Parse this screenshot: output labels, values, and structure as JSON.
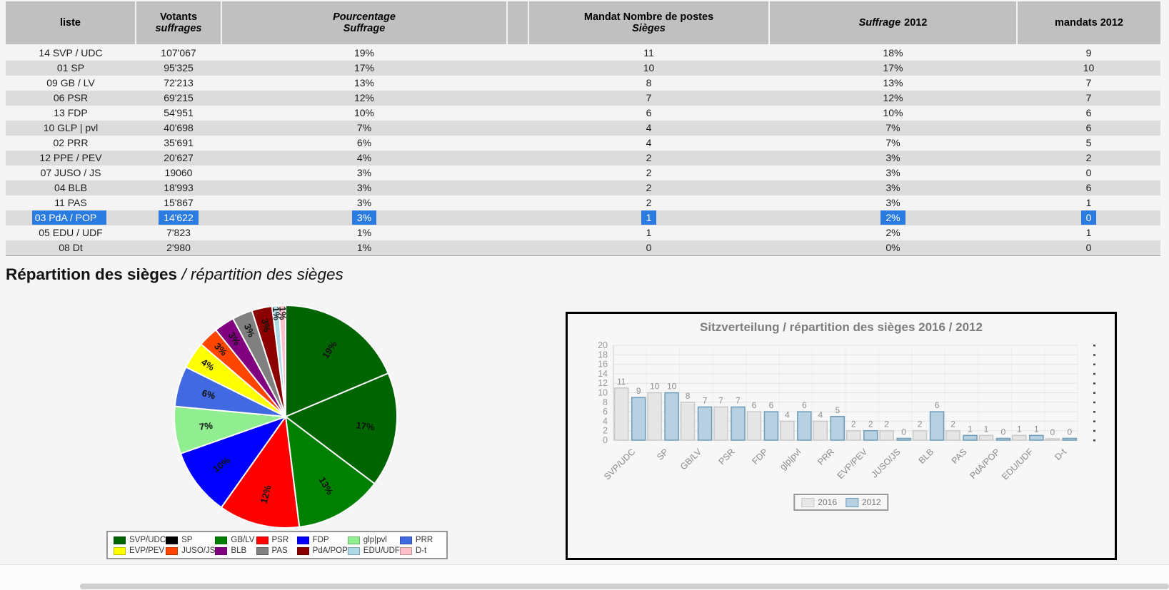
{
  "table": {
    "headers": {
      "liste": "liste",
      "votants": [
        "Votants",
        "suffrages"
      ],
      "pourcentage": [
        "Pourcentage",
        "Suffrage"
      ],
      "mandat": [
        "Mandat Nombre de postes",
        "Sièges"
      ],
      "suffrage_2012": [
        "Suffrage",
        "2012"
      ],
      "mandats_2012": "mandats 2012"
    },
    "rows": [
      [
        "14 SVP / UDC",
        "107'067",
        "19%",
        "11",
        "18%",
        "9"
      ],
      [
        "01 SP",
        "95'325",
        "17%",
        "10",
        "17%",
        "10"
      ],
      [
        "09 GB / LV",
        "72'213",
        "13%",
        "8",
        "13%",
        "7"
      ],
      [
        "06 PSR",
        "69'215",
        "12%",
        "7",
        "12%",
        "7"
      ],
      [
        "13 FDP",
        "54'951",
        "10%",
        "6",
        "10%",
        "6"
      ],
      [
        "10 GLP | pvl",
        "40'698",
        "7%",
        "4",
        "7%",
        "6"
      ],
      [
        "02 PRR",
        "35'691",
        "6%",
        "4",
        "7%",
        "5"
      ],
      [
        "12 PPE / PEV",
        "20'627",
        "4%",
        "2",
        "3%",
        "2"
      ],
      [
        "07 JUSO / JS",
        "19060",
        "3%",
        "2",
        "3%",
        "0"
      ],
      [
        "04 BLB",
        "18'993",
        "3%",
        "2",
        "3%",
        "6"
      ],
      [
        "11 PAS",
        "15'867",
        "3%",
        "2",
        "3%",
        "1"
      ],
      [
        "03 PdA / POP",
        "14'622",
        "3%",
        "1",
        "2%",
        "0"
      ],
      [
        "05 EDU / UDF",
        "7'823",
        "1%",
        "1",
        "2%",
        "1"
      ],
      [
        "08 Dt",
        "2'980",
        "1%",
        "0",
        "0%",
        "0"
      ]
    ],
    "selected_row_index": 11
  },
  "section_title": {
    "main": "Répartition des sièges",
    "italic": "/ répartition des sièges"
  },
  "chart_data": [
    {
      "type": "pie",
      "labels": [
        "SVP/UDC",
        "SP",
        "GB/LV",
        "PSR",
        "FDP",
        "glp|pvl",
        "PRR",
        "EVP/PEV",
        "JUSO/JS",
        "BLB",
        "PAS",
        "PdA/POP",
        "EDU/UDF",
        "D-t"
      ],
      "values": [
        19,
        17,
        13,
        12,
        10,
        7,
        6,
        4,
        3,
        3,
        3,
        3,
        1,
        1
      ],
      "slice_labels": [
        "19%",
        "17%",
        "13%",
        "12%",
        "10%",
        "7%",
        "6%",
        "4%",
        "3%",
        "3%",
        "3%",
        "3%",
        "1%",
        "1%"
      ],
      "slice_colors": [
        "#006400",
        "#006400",
        "#008000",
        "#ff0000",
        "#0000ff",
        "#90ee90",
        "#4169e1",
        "#ffff00",
        "#ff4500",
        "#800080",
        "#808080",
        "#8b0000",
        "#add8e6",
        "#ffc0cb"
      ],
      "legend_colors": [
        "#006400",
        "#000000",
        "#008000",
        "#ff0000",
        "#0000ff",
        "#90ee90",
        "#4169e1",
        "#ffff00",
        "#ff4500",
        "#800080",
        "#808080",
        "#8b0000",
        "#add8e6",
        "#ffc0cb"
      ],
      "legend_labels": [
        "SVP/UDC",
        "SP",
        "GB/LV",
        "PSR",
        "FDP",
        "glp|pvl",
        "PRR",
        "EVP/PEV",
        "JUSO/JS",
        "BLB",
        "PAS",
        "PdA/POP",
        "EDU/UDF",
        "D-t"
      ],
      "start_angle": "top",
      "direction": "clockwise",
      "legend_position": "bottom"
    },
    {
      "type": "bar",
      "title": "Sitzverteilung / répartition des sièges 2016 / 2012",
      "categories": [
        "SVP/UDC",
        "SP",
        "GB/LV",
        "PSR",
        "FDP",
        "glp|pvl",
        "PRR",
        "EVP/PEV",
        "JUSO/JS",
        "BLB",
        "PAS",
        "PdA/POP",
        "EDU/UDF",
        "D-t"
      ],
      "series": [
        {
          "name": "2016",
          "values": [
            11,
            10,
            8,
            7,
            6,
            4,
            4,
            2,
            2,
            2,
            2,
            1,
            1,
            0
          ]
        },
        {
          "name": "2012",
          "values": [
            9,
            10,
            7,
            7,
            6,
            6,
            5,
            2,
            0,
            6,
            1,
            0,
            1,
            0
          ]
        }
      ],
      "xlabel": "",
      "ylabel": "",
      "ylim": [
        0,
        20
      ],
      "ytick_step": 2,
      "grid": true,
      "legend_position": "bottom"
    }
  ],
  "colors": {
    "header_bg": "#c0c0c0",
    "row_bg": "#f4f4f4",
    "row_alt_bg": "#dcdcdc",
    "selection_bg": "#2a7ce0",
    "selection_text": "#ffffff",
    "bar_2016_fill": "#e6e6e6",
    "bar_2016_border": "#c8c8c8",
    "bar_2012_fill": "#b7d0e2",
    "bar_2012_border": "#6d9cb8",
    "panel_border": "#000000"
  }
}
